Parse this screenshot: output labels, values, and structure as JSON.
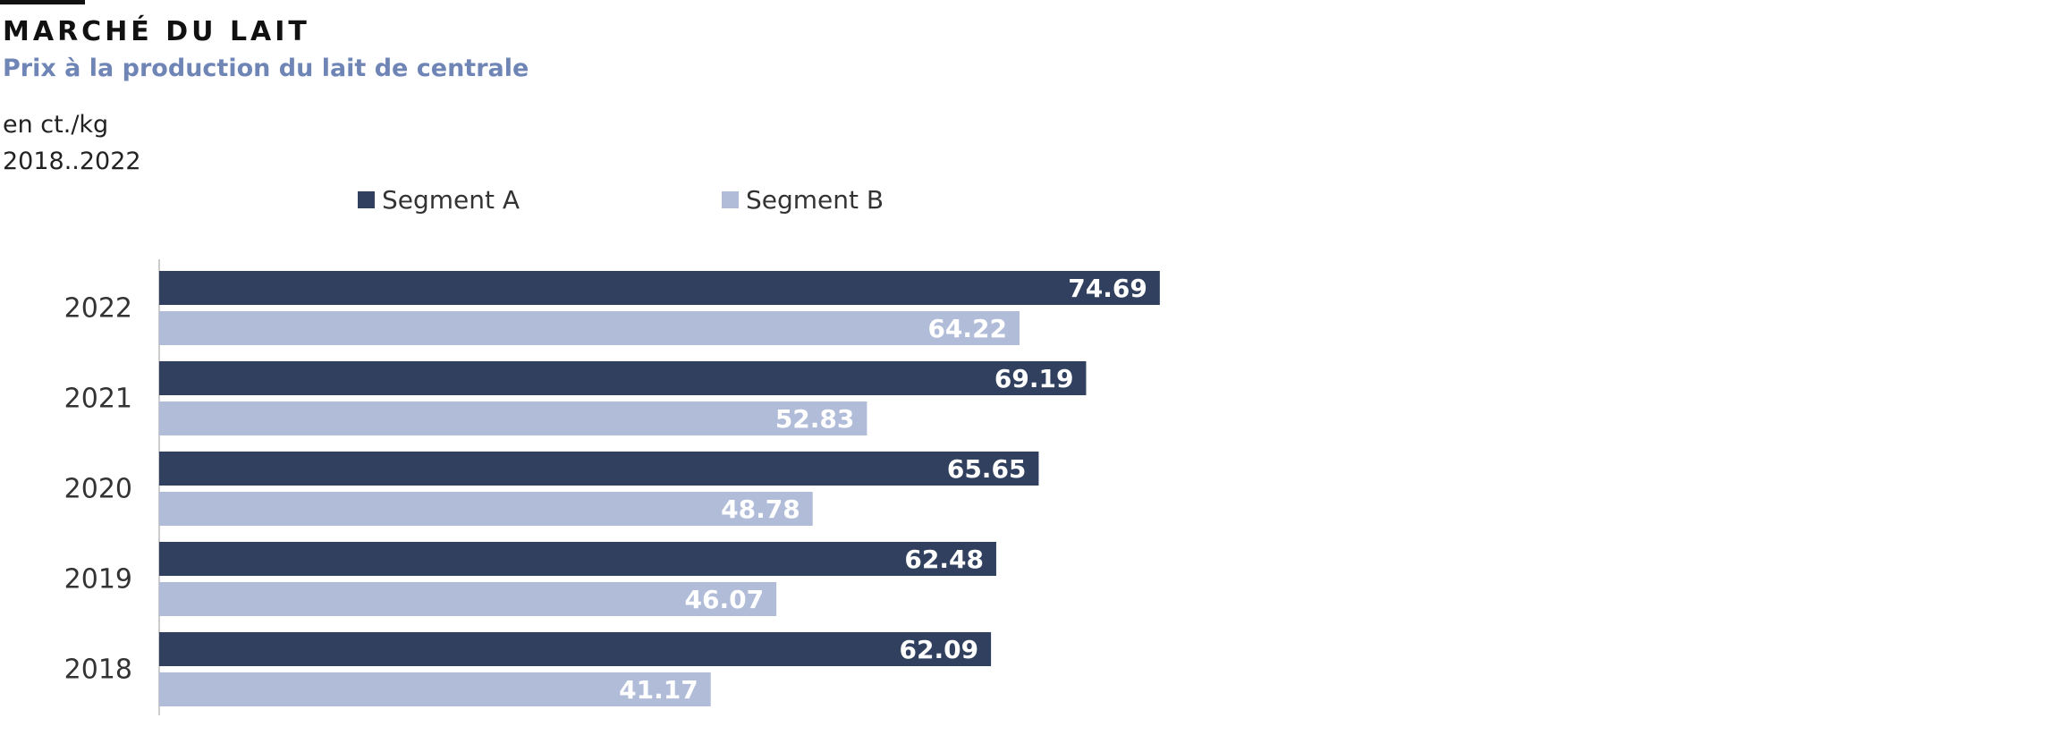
{
  "header": {
    "title": "MARCHÉ DU LAIT",
    "subtitle": "Prix à la production du lait de centrale",
    "unit": "en ct./kg",
    "range": "2018..2022"
  },
  "colors": {
    "segment_a": "#30405e",
    "segment_b": "#b0bcd8",
    "axis": "#cccccc"
  },
  "chart_data": {
    "type": "bar",
    "orientation": "horizontal",
    "categories": [
      "2022",
      "2021",
      "2020",
      "2019",
      "2018"
    ],
    "series": [
      {
        "name": "Segment A",
        "values": [
          74.69,
          69.19,
          65.65,
          62.48,
          62.09
        ]
      },
      {
        "name": "Segment B",
        "values": [
          64.22,
          52.83,
          48.78,
          46.07,
          41.17
        ]
      }
    ],
    "data_labels": true,
    "legend": "top",
    "grid": false
  }
}
